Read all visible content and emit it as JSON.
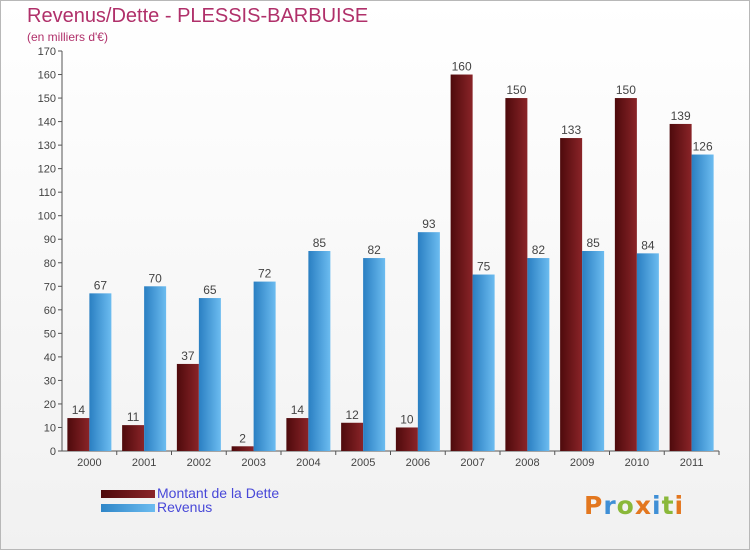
{
  "chart_data": {
    "type": "bar",
    "title": "Revenus/Dette - PLESSIS-BARBUISE",
    "subtitle": "(en milliers d'€)",
    "categories": [
      "2000",
      "2001",
      "2002",
      "2003",
      "2004",
      "2005",
      "2006",
      "2007",
      "2008",
      "2009",
      "2010",
      "2011"
    ],
    "series": [
      {
        "name": "Montant de la Dette",
        "color": "#6e1418",
        "values": [
          14,
          11,
          37,
          2,
          14,
          12,
          10,
          160,
          150,
          133,
          150,
          139
        ]
      },
      {
        "name": "Revenus",
        "color": "#4aa3e0",
        "values": [
          67,
          70,
          65,
          72,
          85,
          82,
          93,
          75,
          82,
          85,
          84,
          126
        ]
      }
    ],
    "ylim": [
      0,
      170
    ],
    "yticks": [
      0,
      10,
      20,
      30,
      40,
      50,
      60,
      70,
      80,
      90,
      100,
      110,
      120,
      130,
      140,
      150,
      160,
      170
    ],
    "grid": false,
    "legend_position": "bottom-left",
    "xlabel": "",
    "ylabel": ""
  },
  "logo": {
    "letters": [
      "P",
      "r",
      "o",
      "x",
      "i",
      "t",
      "i"
    ]
  }
}
